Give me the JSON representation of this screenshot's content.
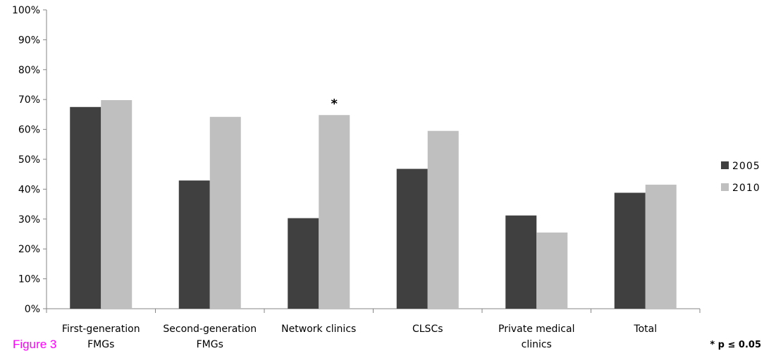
{
  "caption": "Figure 3",
  "footnote": "* p ≤ 0.05",
  "chart_data": {
    "type": "bar",
    "title": "",
    "xlabel": "",
    "ylabel": "",
    "ylim": [
      0,
      100
    ],
    "ytick_values": [
      0,
      10,
      20,
      30,
      40,
      50,
      60,
      70,
      80,
      90,
      100
    ],
    "ytick_labels": [
      "0%",
      "10%",
      "20%",
      "30%",
      "40%",
      "50%",
      "60%",
      "70%",
      "80%",
      "90%",
      "100%"
    ],
    "categories": [
      [
        "First-generation",
        "FMGs"
      ],
      [
        "Second-generation",
        "FMGs"
      ],
      [
        "Network clinics"
      ],
      [
        "CLSCs"
      ],
      [
        "Private medical",
        "clinics"
      ],
      [
        "Total"
      ]
    ],
    "series": [
      {
        "name": "2005",
        "color": "#404040",
        "values": [
          67.5,
          42.9,
          30.3,
          46.8,
          31.2,
          38.8
        ]
      },
      {
        "name": "2010",
        "color": "#bfbfbf",
        "values": [
          69.8,
          64.2,
          64.8,
          59.5,
          25.5,
          41.5
        ]
      }
    ],
    "annotations": [
      {
        "text": "*",
        "category_index": 2,
        "series_index": 1
      }
    ],
    "grid": false,
    "legend": "right"
  }
}
